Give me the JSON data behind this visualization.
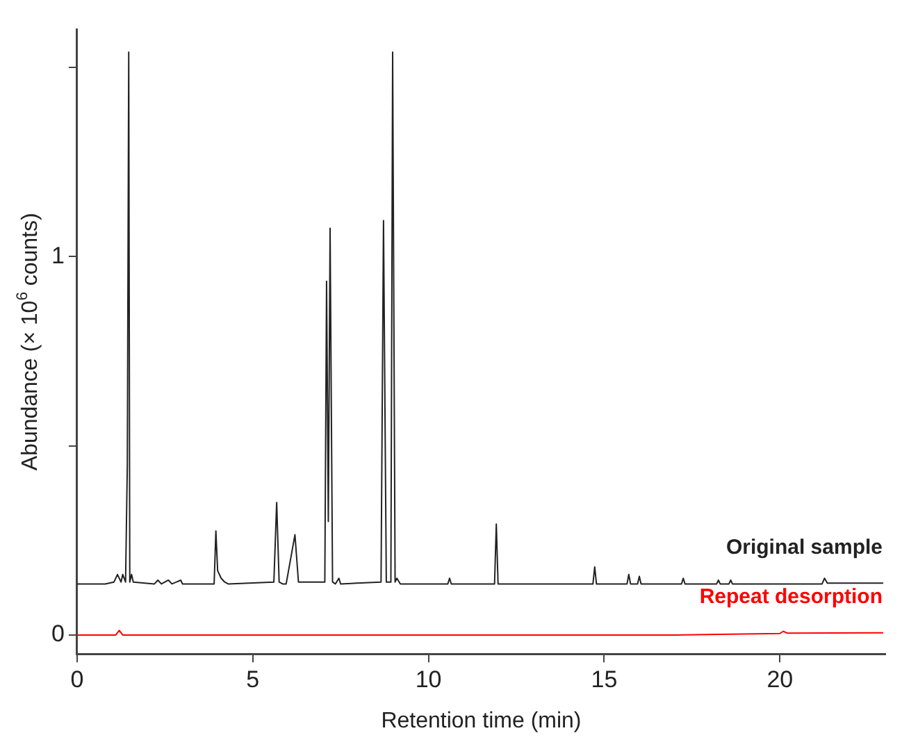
{
  "chart_data": {
    "type": "line",
    "xlabel": "Retention time (min)",
    "ylabel": "Abundance (× 10$^{6}$ counts)",
    "xlim": [
      0,
      23
    ],
    "xticks": [
      0,
      5,
      10,
      15,
      20
    ],
    "ylim": [
      -0.05,
      1.6
    ],
    "yticks": [
      0,
      {
        "value": 0.5,
        "label": null
      },
      1,
      {
        "value": 1.5,
        "label": null
      }
    ],
    "grid": false,
    "legend": false,
    "marker": "none",
    "line_style": "solid",
    "series": [
      {
        "name": "Original sample",
        "color": "#222222",
        "x": [
          0,
          0.8,
          1.05,
          1.15,
          1.25,
          1.3,
          1.38,
          1.43,
          1.47,
          1.5,
          1.55,
          1.6,
          2.2,
          2.3,
          2.4,
          2.6,
          2.7,
          2.95,
          3.0,
          3.9,
          3.95,
          4.0,
          4.1,
          4.2,
          4.3,
          5.6,
          5.68,
          5.75,
          5.85,
          5.95,
          6.2,
          6.3,
          7.05,
          7.1,
          7.15,
          7.2,
          7.27,
          7.35,
          7.45,
          7.5,
          8.65,
          8.72,
          8.8,
          8.93,
          8.98,
          9.05,
          9.1,
          9.2,
          10.55,
          10.6,
          10.65,
          11.88,
          11.93,
          11.98,
          14.68,
          14.73,
          14.78,
          15.65,
          15.7,
          15.75,
          15.95,
          16.0,
          16.05,
          17.2,
          17.25,
          17.3,
          18.2,
          18.25,
          18.3,
          18.55,
          18.6,
          18.65,
          21.2,
          21.27,
          21.35,
          22.94
        ],
        "values": [
          0.135,
          0.135,
          0.14,
          0.16,
          0.14,
          0.16,
          0.14,
          0.45,
          1.54,
          0.14,
          0.16,
          0.14,
          0.135,
          0.145,
          0.135,
          0.145,
          0.135,
          0.145,
          0.135,
          0.135,
          0.275,
          0.17,
          0.15,
          0.14,
          0.135,
          0.14,
          0.35,
          0.14,
          0.135,
          0.135,
          0.265,
          0.14,
          0.14,
          0.935,
          0.3,
          1.075,
          0.14,
          0.135,
          0.15,
          0.135,
          0.14,
          1.095,
          0.14,
          0.14,
          1.54,
          0.14,
          0.15,
          0.135,
          0.135,
          0.15,
          0.135,
          0.135,
          0.293,
          0.135,
          0.135,
          0.18,
          0.135,
          0.135,
          0.16,
          0.135,
          0.135,
          0.155,
          0.135,
          0.135,
          0.15,
          0.135,
          0.135,
          0.145,
          0.135,
          0.135,
          0.145,
          0.135,
          0.135,
          0.15,
          0.137,
          0.137
        ]
      },
      {
        "name": "Repeat desorption",
        "color": "#ff0000",
        "x": [
          0,
          1.1,
          1.2,
          1.3,
          17,
          20,
          20.1,
          20.2,
          22.94
        ],
        "values": [
          0,
          0,
          0.012,
          0,
          0,
          0.004,
          0.01,
          0.005,
          0.006
        ]
      }
    ]
  }
}
